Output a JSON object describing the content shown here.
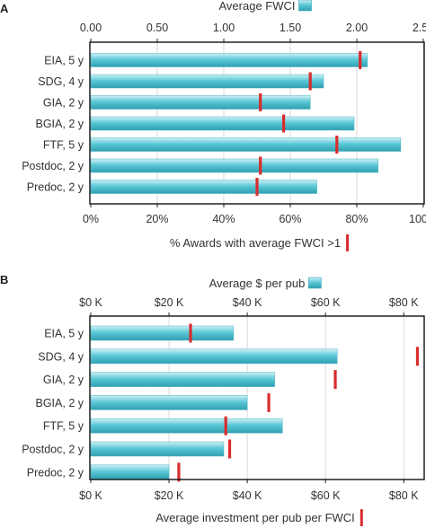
{
  "chart_data": [
    {
      "panel_label": "A",
      "type": "bar",
      "orientation": "horizontal",
      "categories": [
        "EIA, 5 y",
        "SDG, 4 y",
        "GIA, 2 y",
        "BGIA, 2 y",
        "FTF, 5 y",
        "Postdoc, 2 y",
        "Predoc, 2 y"
      ],
      "bar_series": {
        "values": [
          2.08,
          1.75,
          1.65,
          1.98,
          2.33,
          2.16,
          1.7
        ]
      },
      "marker_series": {
        "values": [
          81,
          66,
          51,
          58,
          74,
          51,
          50
        ]
      },
      "top_axis": {
        "label": "Average FWCI",
        "min": 0,
        "max": 2.5,
        "ticks": [
          "0.00",
          "0.50",
          "1.00",
          "1.50",
          "2.00",
          "2.50"
        ]
      },
      "bottom_axis": {
        "label": "% Awards with average FWCI >1",
        "min": 0,
        "max": 100,
        "ticks": [
          "0%",
          "20%",
          "40%",
          "60%",
          "80%",
          "100%"
        ]
      },
      "grid": true
    },
    {
      "panel_label": "B",
      "type": "bar",
      "orientation": "horizontal",
      "categories": [
        "EIA, 5 y",
        "SDG, 4 y",
        "GIA, 2 y",
        "BGIA, 2 y",
        "FTF, 5 y",
        "Postdoc, 2 y",
        "Predoc, 2 y"
      ],
      "bar_series": {
        "values": [
          36.5,
          63,
          47,
          40,
          49,
          34,
          20
        ]
      },
      "marker_series": {
        "values": [
          25.5,
          83.5,
          62.5,
          45.5,
          34.5,
          35.5,
          22.5
        ]
      },
      "top_axis": {
        "label": "Average $ per pub",
        "min": 0,
        "max": 85,
        "ticks": [
          "$0 K",
          "$20 K",
          "$40 K",
          "$60 K",
          "$80 K"
        ],
        "tick_values": [
          0,
          20,
          40,
          60,
          80
        ]
      },
      "bottom_axis": {
        "label": "Average investment per pub per FWCI",
        "min": 0,
        "max": 85,
        "ticks": [
          "$0 K",
          "$20 K",
          "$40 K",
          "$60 K",
          "$80 K"
        ],
        "tick_values": [
          0,
          20,
          40,
          60,
          80
        ]
      },
      "grid": true
    }
  ],
  "colors": {
    "bar_light": "#c4eef5",
    "bar_mid": "#63cbd9",
    "bar_dark": "#2d9fb1",
    "marker": "#d92d2d",
    "grid": "#d0d0d0",
    "text": "#333333"
  }
}
